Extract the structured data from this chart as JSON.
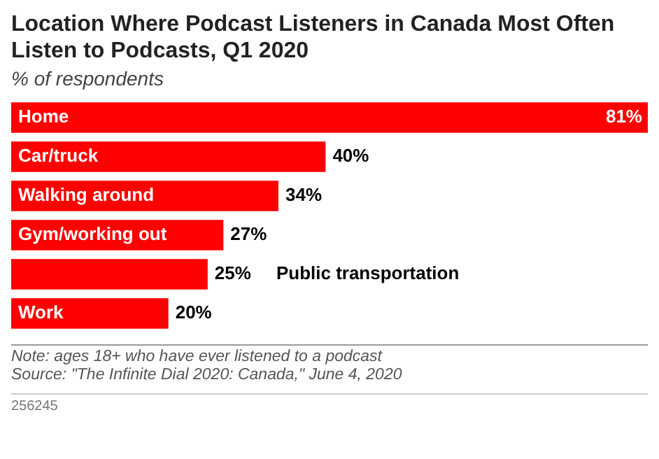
{
  "chart_data": {
    "type": "bar",
    "orientation": "horizontal",
    "title": "Location Where Podcast Listeners in Canada Most Often Listen to Podcasts, Q1 2020",
    "subtitle": "% of respondents",
    "categories": [
      "Home",
      "Car/truck",
      "Walking around",
      "Gym/working out",
      "Public transportation",
      "Work"
    ],
    "values": [
      81,
      40,
      34,
      27,
      25,
      20
    ],
    "color": "#ff0000",
    "value_labels": [
      "81%",
      "40%",
      "34%",
      "27%",
      "25%",
      "20%"
    ],
    "annotations": [
      "Note: ages 18+ who have ever listened to a podcast",
      "Source: \"The Infinite Dial 2020: Canada,\" June 4, 2020",
      "256245"
    ]
  }
}
